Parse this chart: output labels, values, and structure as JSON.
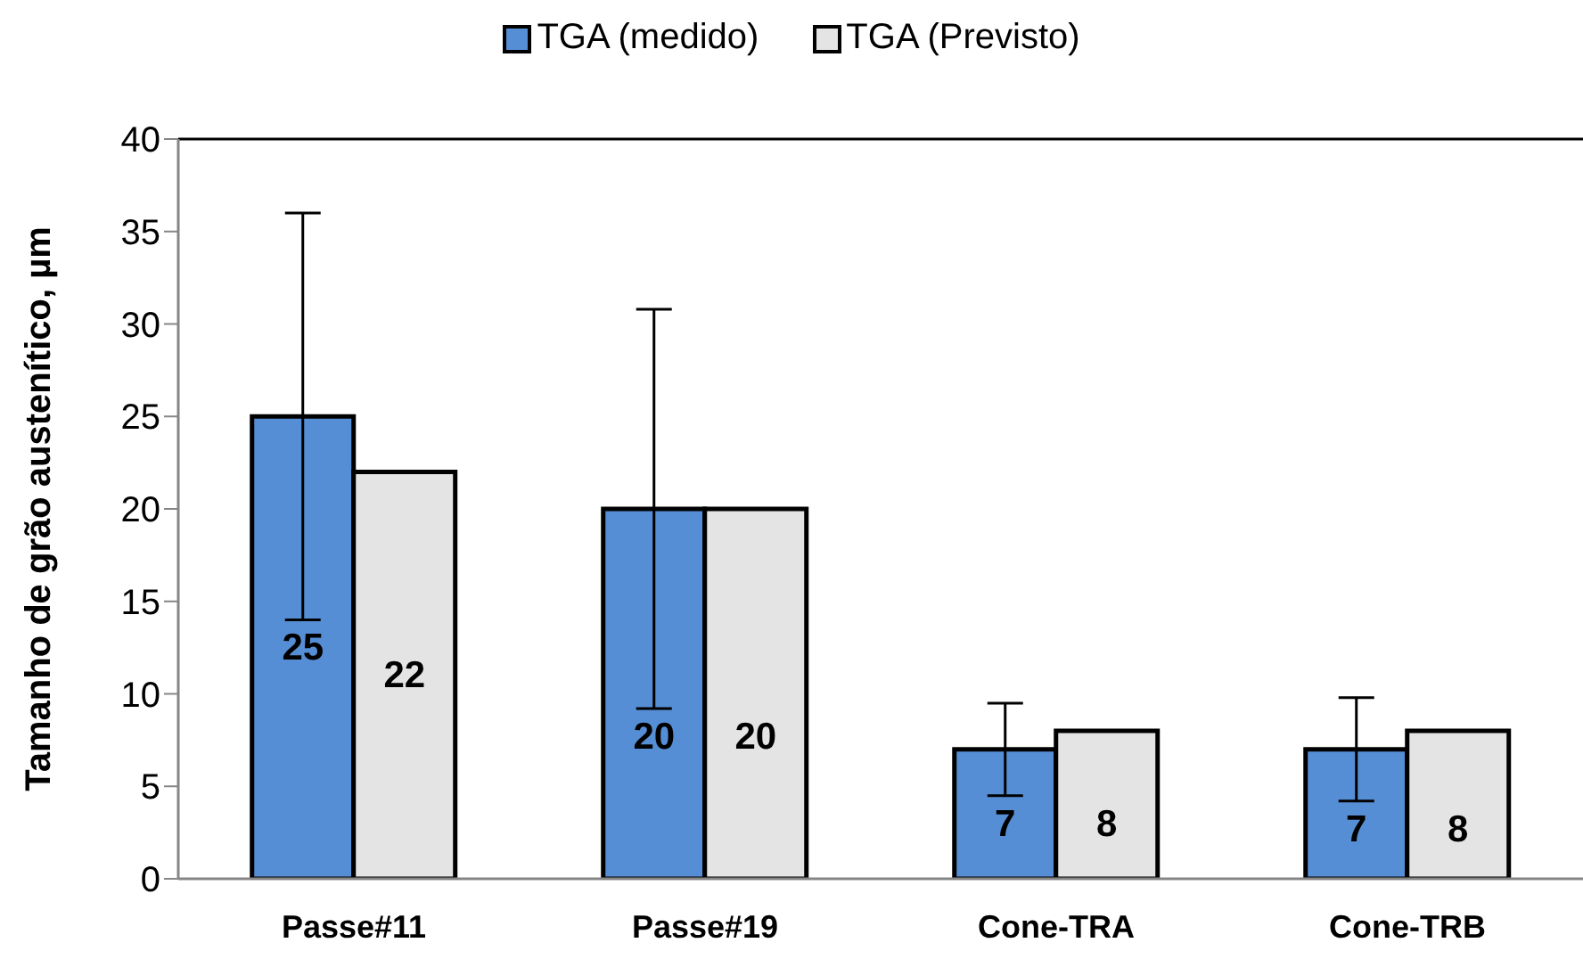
{
  "chart_data": {
    "type": "bar",
    "categories": [
      "Passe#11",
      "Passe#19",
      "Cone-TRA",
      "Cone-TRB"
    ],
    "series": [
      {
        "name": "TGA (medido)",
        "color": "#558ed5",
        "values": [
          25,
          20,
          7,
          7
        ],
        "errors": [
          11,
          10.8,
          2.5,
          2.8
        ]
      },
      {
        "name": "TGA (Previsto)",
        "color": "#e4e4e4",
        "values": [
          22,
          20,
          8,
          8
        ]
      }
    ],
    "ylabel": "Tamanho de grão austenítico, µm",
    "ylim": [
      0,
      40
    ],
    "yticks": [
      0,
      5,
      10,
      15,
      20,
      25,
      30,
      35,
      40
    ],
    "data_labels": true,
    "legend": "top",
    "grid": false
  }
}
